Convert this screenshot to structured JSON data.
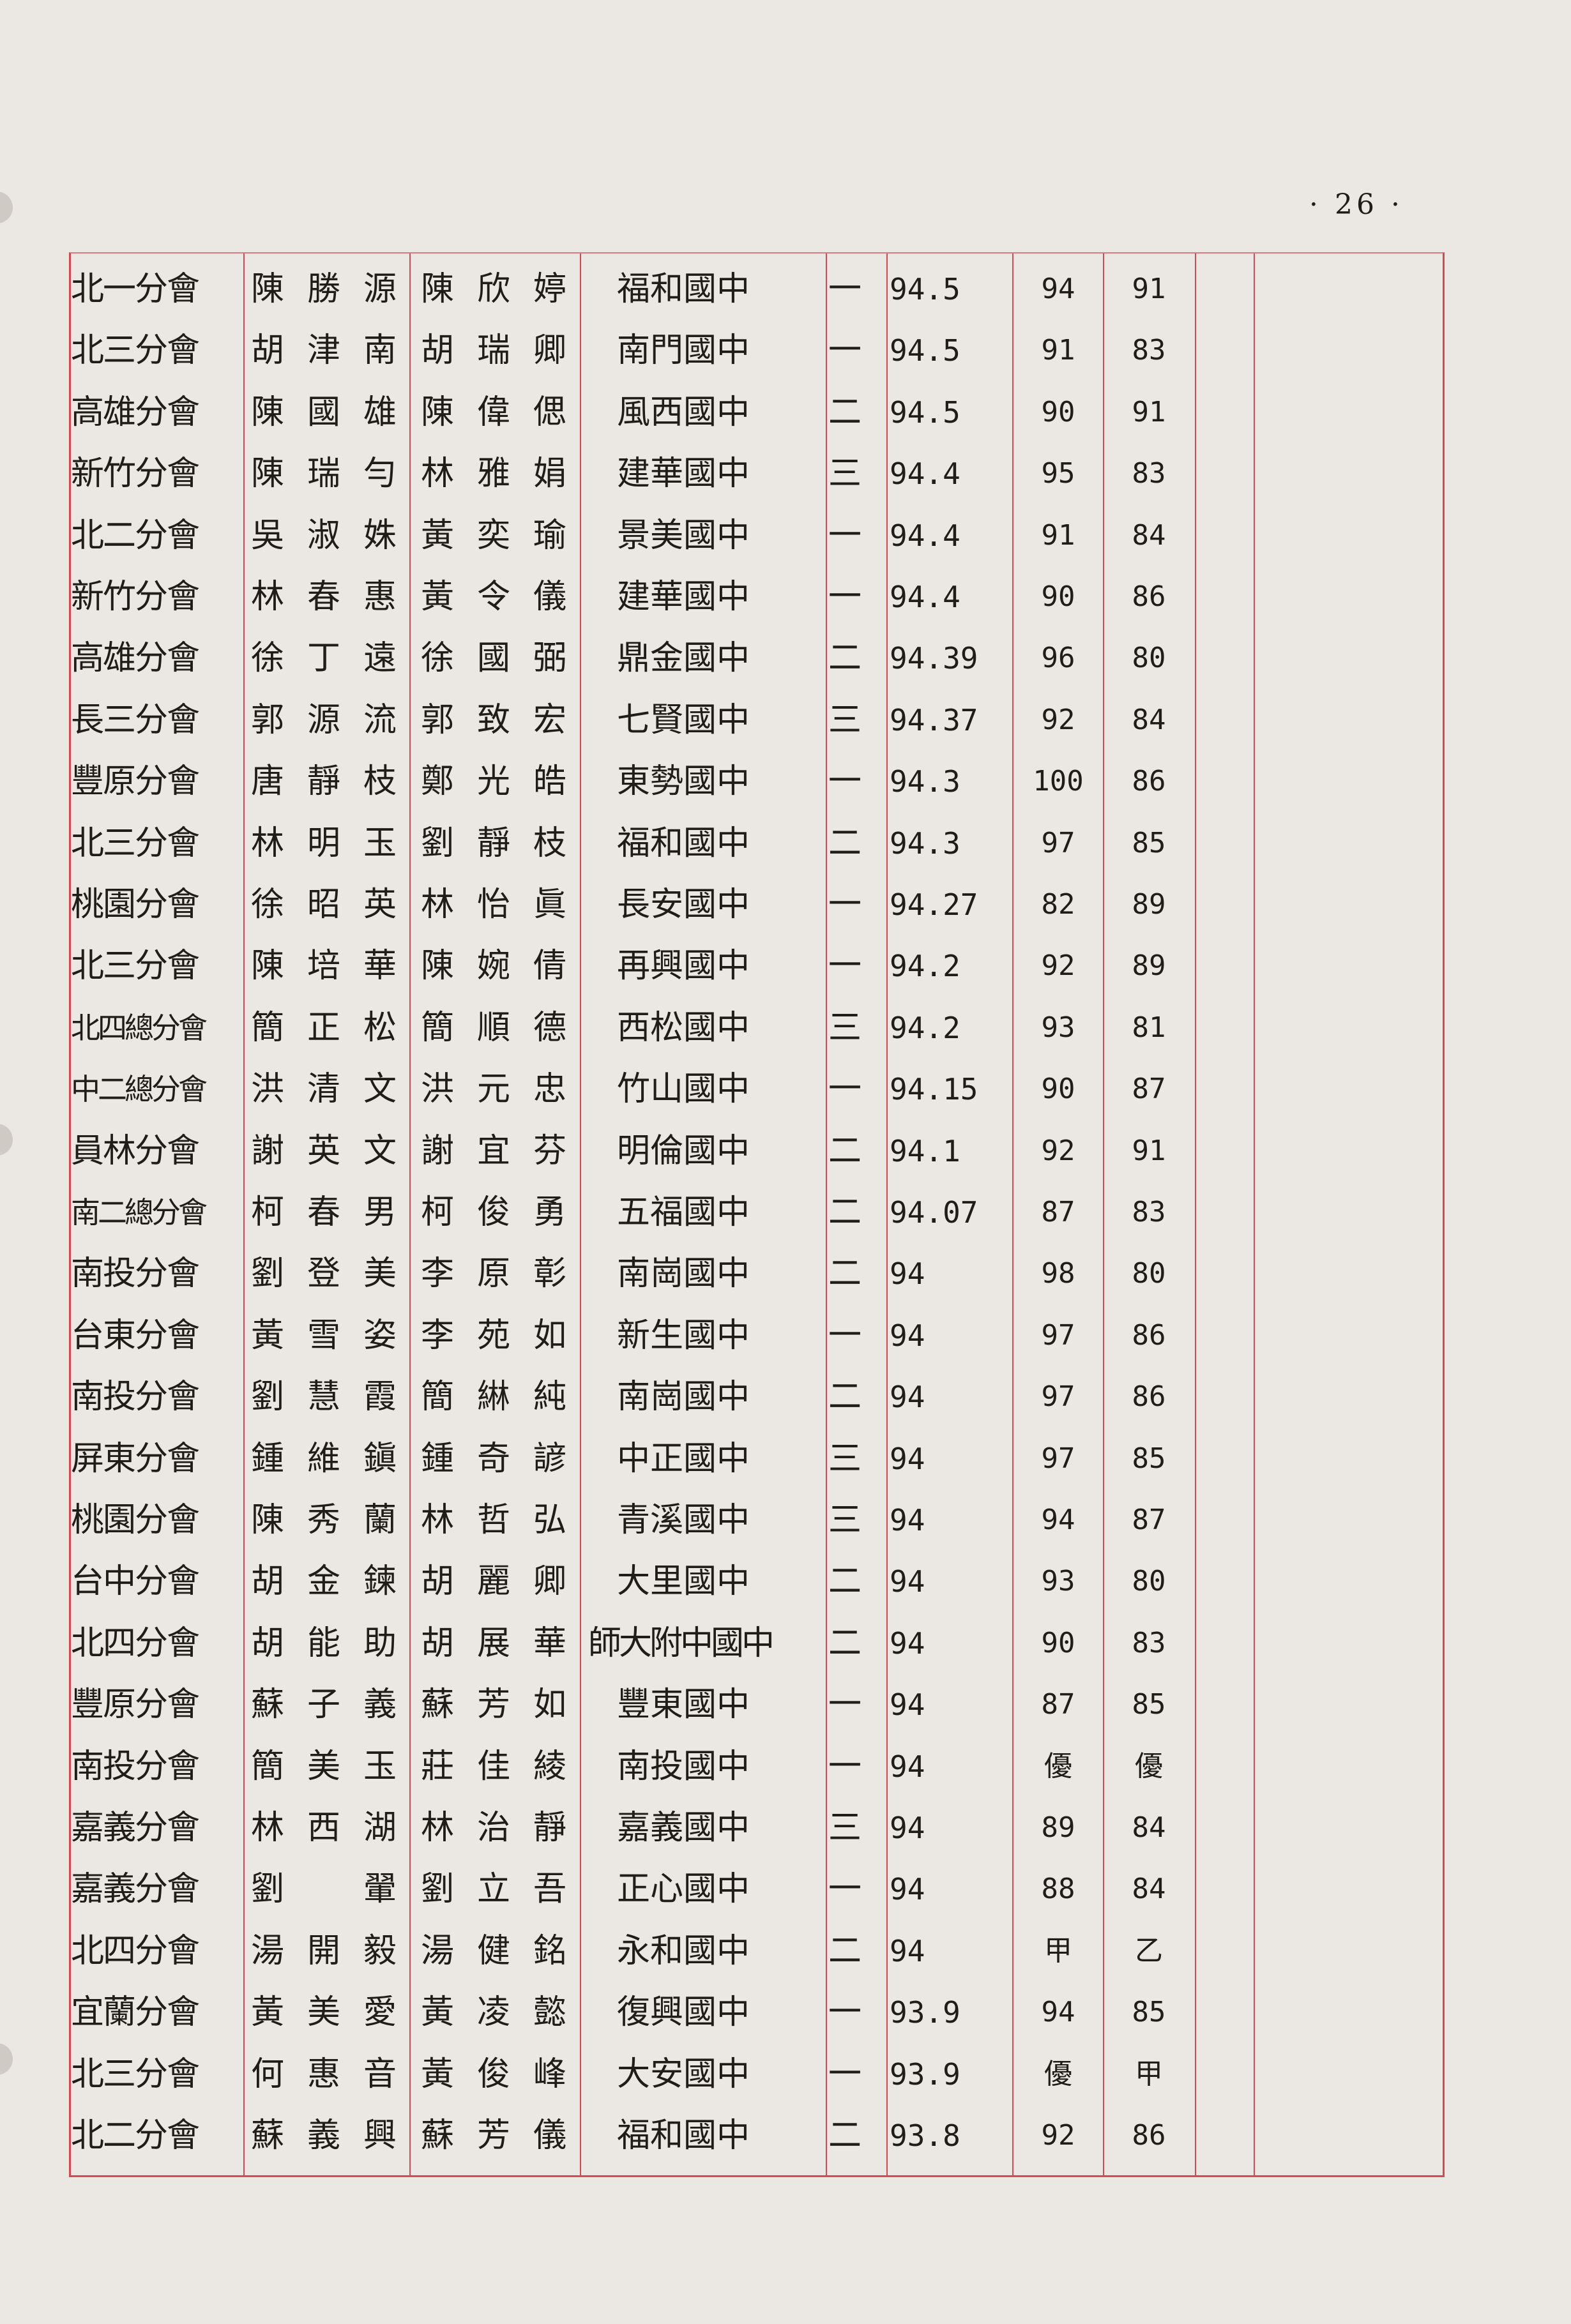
{
  "page_number": "· 26 ·",
  "rows": [
    {
      "branch": "北一分會",
      "parent": "陳勝源",
      "child": "陳欣婷",
      "school": "福和國中",
      "grade": "一",
      "score": "94.5",
      "c7": "94",
      "c8": "91"
    },
    {
      "branch": "北三分會",
      "parent": "胡津南",
      "child": "胡瑞卿",
      "school": "南門國中",
      "grade": "一",
      "score": "94.5",
      "c7": "91",
      "c8": "83"
    },
    {
      "branch": "高雄分會",
      "parent": "陳國雄",
      "child": "陳偉偲",
      "school": "風西國中",
      "grade": "二",
      "score": "94.5",
      "c7": "90",
      "c8": "91"
    },
    {
      "branch": "新竹分會",
      "parent": "陳瑞勻",
      "child": "林雅娟",
      "school": "建華國中",
      "grade": "三",
      "score": "94.4",
      "c7": "95",
      "c8": "83"
    },
    {
      "branch": "北二分會",
      "parent": "吳淑姝",
      "child": "黃奕瑜",
      "school": "景美國中",
      "grade": "一",
      "score": "94.4",
      "c7": "91",
      "c8": "84"
    },
    {
      "branch": "新竹分會",
      "parent": "林春惠",
      "child": "黃令儀",
      "school": "建華國中",
      "grade": "一",
      "score": "94.4",
      "c7": "90",
      "c8": "86"
    },
    {
      "branch": "高雄分會",
      "parent": "徐丁遠",
      "child": "徐國弼",
      "school": "鼎金國中",
      "grade": "二",
      "score": "94.39",
      "c7": "96",
      "c8": "80"
    },
    {
      "branch": "長三分會",
      "parent": "郭源流",
      "child": "郭致宏",
      "school": "七賢國中",
      "grade": "三",
      "score": "94.37",
      "c7": "92",
      "c8": "84"
    },
    {
      "branch": "豐原分會",
      "parent": "唐靜枝",
      "child": "鄭光皓",
      "school": "東勢國中",
      "grade": "一",
      "score": "94.3",
      "c7": "100",
      "c8": "86"
    },
    {
      "branch": "北三分會",
      "parent": "林明玉",
      "child": "劉靜枝",
      "school": "福和國中",
      "grade": "二",
      "score": "94.3",
      "c7": "97",
      "c8": "85"
    },
    {
      "branch": "桃園分會",
      "parent": "徐昭英",
      "child": "林怡眞",
      "school": "長安國中",
      "grade": "一",
      "score": "94.27",
      "c7": "82",
      "c8": "89"
    },
    {
      "branch": "北三分會",
      "parent": "陳培華",
      "child": "陳婉倩",
      "school": "再興國中",
      "grade": "一",
      "score": "94.2",
      "c7": "92",
      "c8": "89"
    },
    {
      "branch": "北四總分會",
      "parent": "簡正松",
      "child": "簡順德",
      "school": "西松國中",
      "grade": "三",
      "score": "94.2",
      "c7": "93",
      "c8": "81"
    },
    {
      "branch": "中二總分會",
      "parent": "洪清文",
      "child": "洪元忠",
      "school": "竹山國中",
      "grade": "一",
      "score": "94.15",
      "c7": "90",
      "c8": "87"
    },
    {
      "branch": "員林分會",
      "parent": "謝英文",
      "child": "謝宜芬",
      "school": "明倫國中",
      "grade": "二",
      "score": "94.1",
      "c7": "92",
      "c8": "91"
    },
    {
      "branch": "南二總分會",
      "parent": "柯春男",
      "child": "柯俊勇",
      "school": "五福國中",
      "grade": "二",
      "score": "94.07",
      "c7": "87",
      "c8": "83"
    },
    {
      "branch": "南投分會",
      "parent": "劉登美",
      "child": "李原彰",
      "school": "南崗國中",
      "grade": "二",
      "score": "94",
      "c7": "98",
      "c8": "80"
    },
    {
      "branch": "台東分會",
      "parent": "黃雪姿",
      "child": "李苑如",
      "school": "新生國中",
      "grade": "一",
      "score": "94",
      "c7": "97",
      "c8": "86"
    },
    {
      "branch": "南投分會",
      "parent": "劉慧霞",
      "child": "簡綝純",
      "school": "南崗國中",
      "grade": "二",
      "score": "94",
      "c7": "97",
      "c8": "86"
    },
    {
      "branch": "屏東分會",
      "parent": "鍾維鎭",
      "child": "鍾奇諺",
      "school": "中正國中",
      "grade": "三",
      "score": "94",
      "c7": "97",
      "c8": "85"
    },
    {
      "branch": "桃園分會",
      "parent": "陳秀蘭",
      "child": "林哲弘",
      "school": "青溪國中",
      "grade": "三",
      "score": "94",
      "c7": "94",
      "c8": "87"
    },
    {
      "branch": "台中分會",
      "parent": "胡金鍊",
      "child": "胡麗卿",
      "school": "大里國中",
      "grade": "二",
      "score": "94",
      "c7": "93",
      "c8": "80"
    },
    {
      "branch": "北四分會",
      "parent": "胡能助",
      "child": "胡展華",
      "school": "師大附中國中",
      "grade": "二",
      "score": "94",
      "c7": "90",
      "c8": "83"
    },
    {
      "branch": "豐原分會",
      "parent": "蘇子義",
      "child": "蘇芳如",
      "school": "豐東國中",
      "grade": "一",
      "score": "94",
      "c7": "87",
      "c8": "85"
    },
    {
      "branch": "南投分會",
      "parent": "簡美玉",
      "child": "莊佳綾",
      "school": "南投國中",
      "grade": "一",
      "score": "94",
      "c7": "優",
      "c8": "優"
    },
    {
      "branch": "嘉義分會",
      "parent": "林西湖",
      "child": "林治靜",
      "school": "嘉義國中",
      "grade": "三",
      "score": "94",
      "c7": "89",
      "c8": "84"
    },
    {
      "branch": "嘉義分會",
      "parent": "劉　翬",
      "child": "劉立吾",
      "school": "正心國中",
      "grade": "一",
      "score": "94",
      "c7": "88",
      "c8": "84"
    },
    {
      "branch": "北四分會",
      "parent": "湯開毅",
      "child": "湯健銘",
      "school": "永和國中",
      "grade": "二",
      "score": "94",
      "c7": "甲",
      "c8": "乙"
    },
    {
      "branch": "宜蘭分會",
      "parent": "黃美愛",
      "child": "黃凌懿",
      "school": "復興國中",
      "grade": "一",
      "score": "93.9",
      "c7": "94",
      "c8": "85"
    },
    {
      "branch": "北三分會",
      "parent": "何惠音",
      "child": "黃俊峰",
      "school": "大安國中",
      "grade": "一",
      "score": "93.9",
      "c7": "優",
      "c8": "甲"
    },
    {
      "branch": "北二分會",
      "parent": "蘇義興",
      "child": "蘇芳儀",
      "school": "福和國中",
      "grade": "二",
      "score": "93.8",
      "c7": "92",
      "c8": "86"
    }
  ]
}
